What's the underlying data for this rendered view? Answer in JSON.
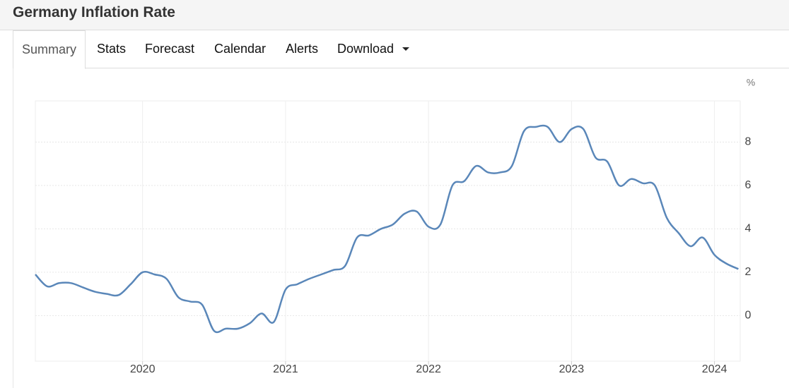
{
  "header": {
    "title": "Germany Inflation Rate"
  },
  "tabs": [
    "Summary",
    "Stats",
    "Forecast",
    "Calendar",
    "Alerts",
    "Download"
  ],
  "chart_data": {
    "type": "line",
    "ylabel": "%",
    "x": [
      2019.25,
      2019.333,
      2019.417,
      2019.5,
      2019.583,
      2019.667,
      2019.75,
      2019.833,
      2019.917,
      2020.0,
      2020.083,
      2020.167,
      2020.25,
      2020.333,
      2020.417,
      2020.5,
      2020.583,
      2020.667,
      2020.75,
      2020.833,
      2020.917,
      2021.0,
      2021.083,
      2021.167,
      2021.25,
      2021.333,
      2021.417,
      2021.5,
      2021.583,
      2021.667,
      2021.75,
      2021.833,
      2021.917,
      2022.0,
      2022.083,
      2022.167,
      2022.25,
      2022.333,
      2022.417,
      2022.5,
      2022.583,
      2022.667,
      2022.75,
      2022.833,
      2022.917,
      2023.0,
      2023.083,
      2023.167,
      2023.25,
      2023.333,
      2023.417,
      2023.5,
      2023.583,
      2023.667,
      2023.75,
      2023.833,
      2023.917,
      2024.0,
      2024.083,
      2024.167
    ],
    "values": [
      1.9,
      1.35,
      1.5,
      1.5,
      1.3,
      1.1,
      1.0,
      0.95,
      1.45,
      2.0,
      1.9,
      1.7,
      0.85,
      0.65,
      0.5,
      -0.7,
      -0.6,
      -0.6,
      -0.35,
      0.1,
      -0.3,
      1.2,
      1.45,
      1.7,
      1.9,
      2.1,
      2.3,
      3.6,
      3.7,
      4.0,
      4.2,
      4.7,
      4.8,
      4.1,
      4.2,
      6.0,
      6.2,
      6.9,
      6.6,
      6.6,
      6.9,
      8.5,
      8.7,
      8.7,
      8.0,
      8.6,
      8.6,
      7.3,
      7.1,
      6.0,
      6.3,
      6.1,
      6.0,
      4.5,
      3.8,
      3.2,
      3.6,
      2.8,
      2.4,
      2.15
    ],
    "color": "#5a87b9",
    "xlim": [
      2019.25,
      2024.18
    ],
    "xticks": [
      2020,
      2021,
      2022,
      2023,
      2024
    ],
    "ylim": [
      -2.1,
      9.9
    ],
    "yticks": [
      0,
      2,
      4,
      6,
      8
    ],
    "grid": true
  }
}
